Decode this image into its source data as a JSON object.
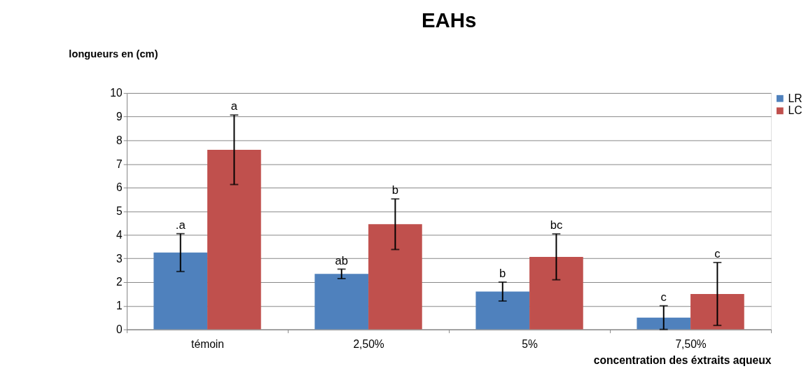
{
  "chart_data": {
    "type": "bar",
    "title": "EAHs",
    "ylabel": "longueurs en (cm)",
    "xlabel": "concentration des éxtraits aqueux",
    "categories": [
      "témoin",
      "2,50%",
      "5%",
      "7,50%"
    ],
    "series": [
      {
        "name": "LR",
        "color": "#4f81bd",
        "values": [
          3.25,
          2.35,
          1.6,
          0.5
        ],
        "errors": [
          0.8,
          0.2,
          0.4,
          0.5
        ],
        "value_labels": [
          ".a",
          "ab",
          "b",
          "c"
        ]
      },
      {
        "name": "LC",
        "color": "#c0504d",
        "values": [
          7.6,
          4.45,
          3.07,
          1.5
        ],
        "errors": [
          1.47,
          1.07,
          0.97,
          1.33
        ],
        "value_labels": [
          "a",
          "b",
          "bc",
          "c"
        ]
      }
    ],
    "ylim": [
      0,
      10
    ],
    "yticks": [
      0,
      1,
      2,
      3,
      4,
      5,
      6,
      7,
      8,
      9,
      10
    ],
    "grid": "y",
    "legend": "right"
  }
}
